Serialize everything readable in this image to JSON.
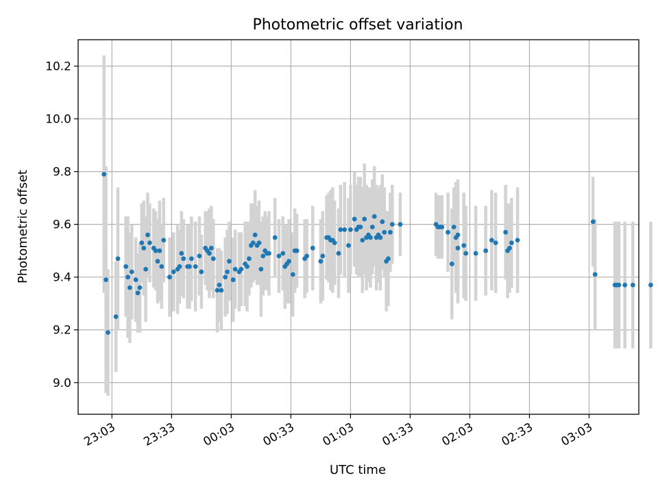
{
  "chart_data": {
    "type": "scatter",
    "title": "Photometric offset variation",
    "xlabel": "UTC time",
    "ylabel": "Photometric offset",
    "x_unit": "minutes after 23:03",
    "x_ticks": [
      "23:03",
      "23:33",
      "00:03",
      "00:33",
      "01:03",
      "01:33",
      "02:03",
      "02:33",
      "03:03"
    ],
    "y_ticks": [
      "9.0",
      "9.2",
      "9.4",
      "9.6",
      "9.8",
      "10.0",
      "10.2"
    ],
    "xlim": [
      -17,
      265
    ],
    "ylim": [
      8.88,
      10.3
    ],
    "grid": true,
    "colors": {
      "marker": "#1f77b4",
      "errorbar": "#d3d3d3",
      "grid": "#b0b0b0",
      "axes": "#000000"
    },
    "series": [
      {
        "points": [
          [
            -4,
            9.79,
            0.45
          ],
          [
            -3,
            9.39,
            0.43
          ],
          [
            -2,
            9.19,
            0.24
          ],
          [
            2,
            9.25,
            0.21
          ],
          [
            3,
            9.47,
            0.27
          ],
          [
            7,
            9.44,
            0.19
          ],
          [
            8,
            9.4,
            0.23
          ],
          [
            9,
            9.36,
            0.21
          ],
          [
            10,
            9.42,
            0.18
          ],
          [
            12,
            9.39,
            0.16
          ],
          [
            13,
            9.34,
            0.15
          ],
          [
            14,
            9.36,
            0.17
          ],
          [
            15,
            9.53,
            0.15
          ],
          [
            16,
            9.51,
            0.18
          ],
          [
            17,
            9.43,
            0.2
          ],
          [
            18,
            9.56,
            0.16
          ],
          [
            19,
            9.53,
            0.15
          ],
          [
            21,
            9.51,
            0.15
          ],
          [
            22,
            9.5,
            0.15
          ],
          [
            23,
            9.46,
            0.16
          ],
          [
            24,
            9.5,
            0.19
          ],
          [
            25,
            9.44,
            0.16
          ],
          [
            26,
            9.54,
            0.16
          ],
          [
            29,
            9.4,
            0.15
          ],
          [
            31,
            9.42,
            0.15
          ],
          [
            33,
            9.43,
            0.17
          ],
          [
            34,
            9.44,
            0.14
          ],
          [
            35,
            9.49,
            0.16
          ],
          [
            36,
            9.47,
            0.15
          ],
          [
            38,
            9.44,
            0.16
          ],
          [
            39,
            9.44,
            0.16
          ],
          [
            40,
            9.47,
            0.16
          ],
          [
            42,
            9.44,
            0.17
          ],
          [
            44,
            9.48,
            0.15
          ],
          [
            45,
            9.42,
            0.14
          ],
          [
            47,
            9.51,
            0.14
          ],
          [
            48,
            9.5,
            0.15
          ],
          [
            49,
            9.49,
            0.17
          ],
          [
            50,
            9.51,
            0.16
          ],
          [
            51,
            9.47,
            0.15
          ],
          [
            53,
            9.35,
            0.16
          ],
          [
            54,
            9.37,
            0.14
          ],
          [
            55,
            9.35,
            0.15
          ],
          [
            57,
            9.4,
            0.15
          ],
          [
            58,
            9.42,
            0.16
          ],
          [
            59,
            9.46,
            0.15
          ],
          [
            61,
            9.39,
            0.16
          ],
          [
            62,
            9.43,
            0.15
          ],
          [
            64,
            9.42,
            0.15
          ],
          [
            65,
            9.43,
            0.14
          ],
          [
            67,
            9.45,
            0.16
          ],
          [
            68,
            9.44,
            0.17
          ],
          [
            69,
            9.47,
            0.14
          ],
          [
            70,
            9.52,
            0.16
          ],
          [
            71,
            9.53,
            0.15
          ],
          [
            72,
            9.56,
            0.17
          ],
          [
            73,
            9.52,
            0.15
          ],
          [
            74,
            9.53,
            0.16
          ],
          [
            75,
            9.43,
            0.18
          ],
          [
            76,
            9.48,
            0.15
          ],
          [
            77,
            9.5,
            0.15
          ],
          [
            78,
            9.49,
            0.14
          ],
          [
            79,
            9.49,
            0.16
          ],
          [
            82,
            9.55,
            0.15
          ],
          [
            84,
            9.48,
            0.14
          ],
          [
            86,
            9.49,
            0.14
          ],
          [
            87,
            9.44,
            0.16
          ],
          [
            88,
            9.45,
            0.15
          ],
          [
            89,
            9.46,
            0.16
          ],
          [
            91,
            9.41,
            0.16
          ],
          [
            92,
            9.5,
            0.16
          ],
          [
            93,
            9.5,
            0.14
          ],
          [
            97,
            9.47,
            0.15
          ],
          [
            98,
            9.48,
            0.14
          ],
          [
            101,
            9.51,
            0.16
          ],
          [
            105,
            9.46,
            0.16
          ],
          [
            106,
            9.48,
            0.17
          ],
          [
            108,
            9.55,
            0.16
          ],
          [
            109,
            9.55,
            0.17
          ],
          [
            110,
            9.54,
            0.19
          ],
          [
            111,
            9.54,
            0.2
          ],
          [
            112,
            9.53,
            0.16
          ],
          [
            114,
            9.49,
            0.17
          ],
          [
            115,
            9.58,
            0.17
          ],
          [
            117,
            9.58,
            0.18
          ],
          [
            119,
            9.52,
            0.18
          ],
          [
            120,
            9.58,
            0.17
          ],
          [
            122,
            9.62,
            0.18
          ],
          [
            123,
            9.58,
            0.17
          ],
          [
            124,
            9.59,
            0.19
          ],
          [
            125,
            9.59,
            0.19
          ],
          [
            126,
            9.54,
            0.2
          ],
          [
            127,
            9.62,
            0.21
          ],
          [
            128,
            9.55,
            0.2
          ],
          [
            129,
            9.56,
            0.18
          ],
          [
            130,
            9.55,
            0.19
          ],
          [
            131,
            9.59,
            0.18
          ],
          [
            132,
            9.63,
            0.19
          ],
          [
            133,
            9.55,
            0.2
          ],
          [
            134,
            9.56,
            0.18
          ],
          [
            135,
            9.55,
            0.2
          ],
          [
            136,
            9.61,
            0.18
          ],
          [
            137,
            9.57,
            0.17
          ],
          [
            138,
            9.46,
            0.19
          ],
          [
            139,
            9.47,
            0.18
          ],
          [
            140,
            9.57,
            0.15
          ],
          [
            141,
            9.6,
            0.15
          ],
          [
            145,
            9.6,
            0.12
          ],
          [
            163,
            9.6,
            0.12
          ],
          [
            164,
            9.59,
            0.12
          ],
          [
            165,
            9.59,
            0.12
          ],
          [
            166,
            9.59,
            0.12
          ],
          [
            169,
            9.57,
            0.15
          ],
          [
            171,
            9.45,
            0.21
          ],
          [
            172,
            9.59,
            0.15
          ],
          [
            173,
            9.55,
            0.21
          ],
          [
            174,
            9.51,
            0.21
          ],
          [
            174,
            9.56,
            0.21
          ],
          [
            177,
            9.52,
            0.2
          ],
          [
            178,
            9.49,
            0.18
          ],
          [
            183,
            9.49,
            0.18
          ],
          [
            188,
            9.5,
            0.17
          ],
          [
            191,
            9.54,
            0.19
          ],
          [
            193,
            9.53,
            0.19
          ],
          [
            198,
            9.57,
            0.18
          ],
          [
            199,
            9.5,
            0.18
          ],
          [
            200,
            9.51,
            0.17
          ],
          [
            201,
            9.53,
            0.17
          ],
          [
            204,
            9.54,
            0.2
          ],
          [
            242,
            9.61,
            0.17
          ],
          [
            243,
            9.41,
            0.21
          ],
          [
            253,
            9.37,
            0.24
          ],
          [
            254,
            9.37,
            0.24
          ],
          [
            255,
            9.37,
            0.24
          ],
          [
            258,
            9.37,
            0.24
          ],
          [
            262,
            9.37,
            0.24
          ],
          [
            271,
            9.37,
            0.24
          ]
        ]
      }
    ]
  }
}
